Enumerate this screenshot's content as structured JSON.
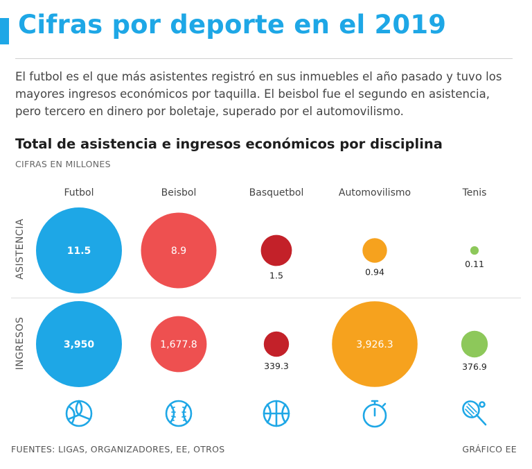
{
  "header": {
    "title": "Cifras por deporte en el 2019",
    "intro": "El futbol es el que más asistentes registró en sus inmuebles el año pasado y tuvo los mayores ingresos económicos por taquilla. El beisbol fue el segundo en asistencia, pero tercero en dinero por boletaje, superado por el automovilismo."
  },
  "chart_data": {
    "type": "bubble",
    "title": "Total de asistencia e ingresos económicos por disciplina",
    "subtitle": "CIFRAS EN MILLONES",
    "categories": [
      "Futbol",
      "Beisbol",
      "Basquetbol",
      "Automovilismo",
      "Tenis"
    ],
    "series": [
      {
        "name": "ASISTENCIA",
        "values": [
          11.5,
          8.9,
          1.5,
          0.94,
          0.11
        ],
        "labels": [
          "11.5",
          "8.9",
          "1.5",
          "0.94",
          "0.11"
        ]
      },
      {
        "name": "INGRESOS",
        "values": [
          3950,
          1677.8,
          339.3,
          3926.3,
          376.9
        ],
        "labels": [
          "3,950",
          "1,677.8",
          "339.3",
          "3,926.3",
          "376.9"
        ]
      }
    ],
    "colors": [
      "#1ea7e6",
      "#ee5050",
      "#c32129",
      "#f6a21e",
      "#8dc85a"
    ]
  },
  "icons": [
    "soccer-ball-icon",
    "baseball-icon",
    "basketball-icon",
    "stopwatch-icon",
    "tennis-racket-icon"
  ],
  "icon_color": "#1ea7e6",
  "footer": {
    "source": "FUENTES: LIGAS, ORGANIZADORES, EE, OTROS",
    "credit": "GRÁFICO EE"
  }
}
